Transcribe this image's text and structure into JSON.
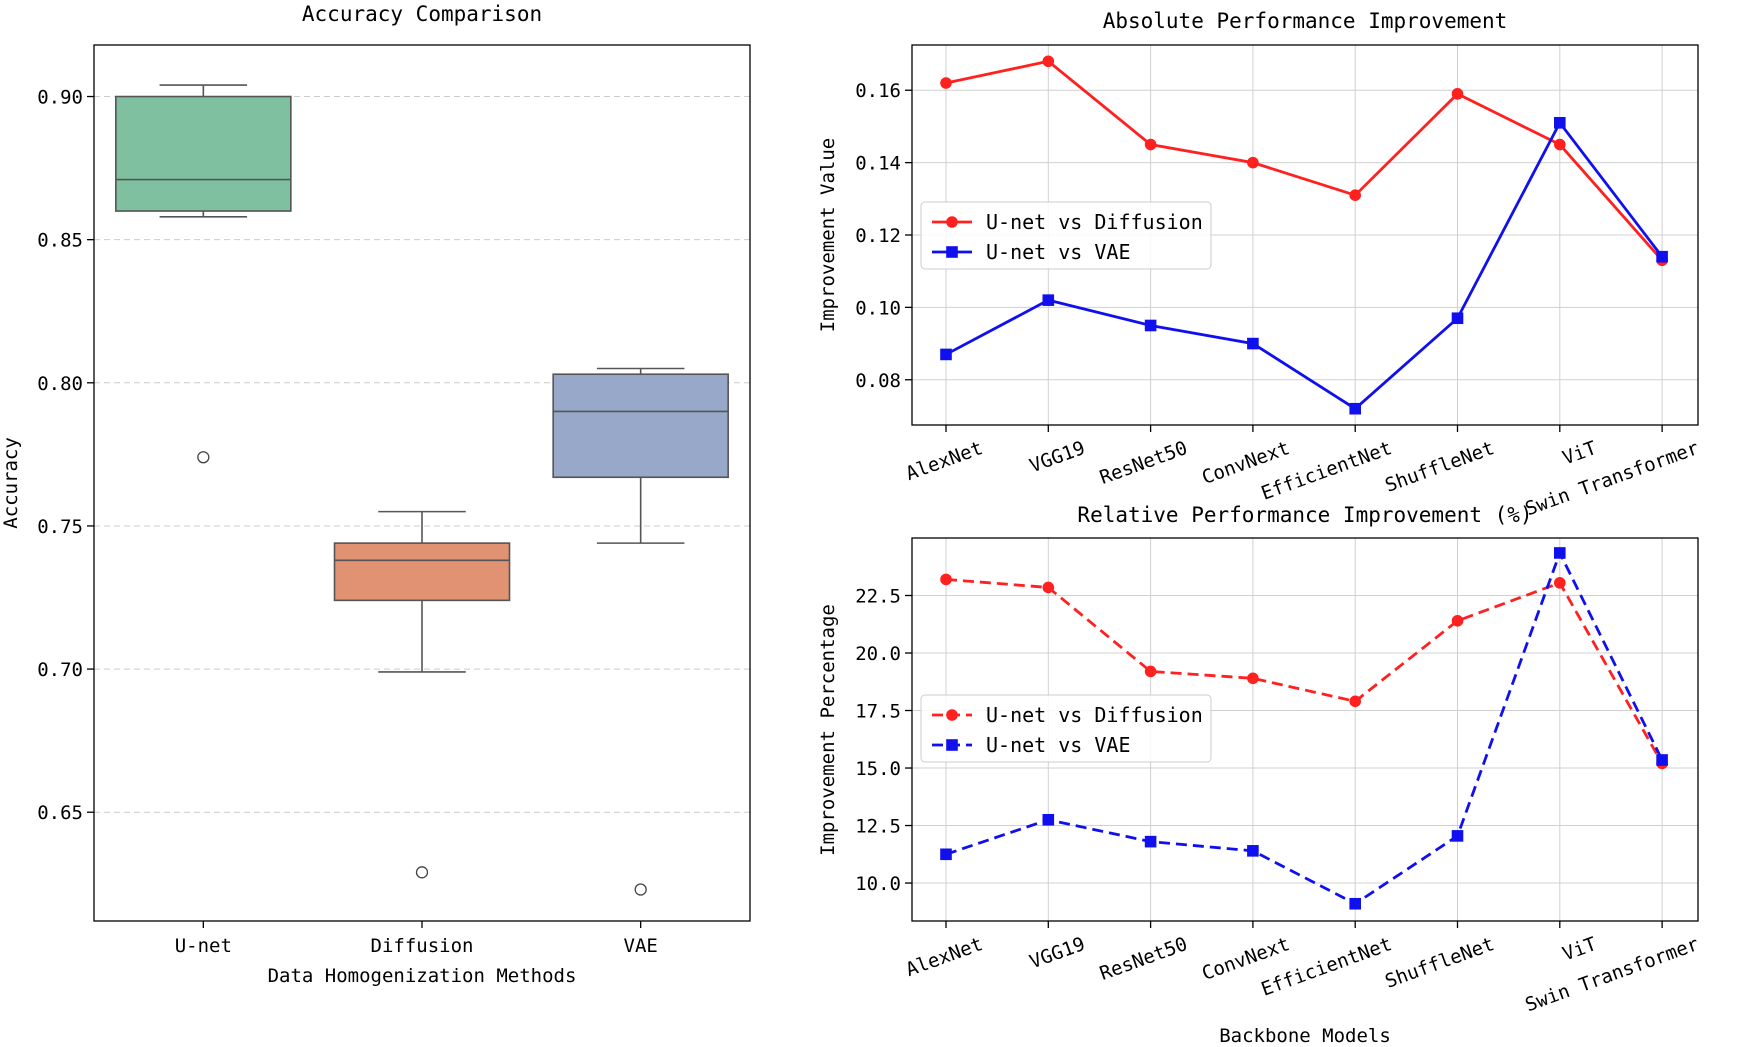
{
  "chart_data": [
    {
      "type": "box",
      "title": "Accuracy Comparison",
      "xlabel": "Data Homogenization Methods",
      "ylabel": "Accuracy",
      "ylim": [
        0.612,
        0.918
      ],
      "yticks": [
        "0.65",
        "0.70",
        "0.75",
        "0.80",
        "0.85",
        "0.90"
      ],
      "grid": "horizontal dashed",
      "boxes": [
        {
          "name": "U-net",
          "color": "#7fc0a0",
          "whisker_low": 0.858,
          "q1": 0.86,
          "median": 0.871,
          "q3": 0.9,
          "whisker_high": 0.904,
          "outliers": [
            0.774
          ]
        },
        {
          "name": "Diffusion",
          "color": "#e09273",
          "whisker_low": 0.699,
          "q1": 0.724,
          "median": 0.738,
          "q3": 0.744,
          "whisker_high": 0.755,
          "outliers": [
            0.629
          ]
        },
        {
          "name": "VAE",
          "color": "#97a8c8",
          "whisker_low": 0.744,
          "q1": 0.767,
          "median": 0.79,
          "q3": 0.803,
          "whisker_high": 0.805,
          "outliers": [
            0.623
          ]
        }
      ]
    },
    {
      "type": "line",
      "title": "Absolute Performance Improvement",
      "xlabel": "",
      "ylabel": "Improvement Value",
      "ylim": [
        0.0675,
        0.1725
      ],
      "yticks": [
        "0.08",
        "0.10",
        "0.12",
        "0.14",
        "0.16"
      ],
      "categories": [
        "AlexNet",
        "VGG19",
        "ResNet50",
        "ConvNext",
        "EfficientNet",
        "ShuffleNet",
        "ViT",
        "Swin Transformer"
      ],
      "legend": "center-left",
      "series": [
        {
          "name": "U-net vs Diffusion",
          "color": "#ff2020",
          "style": "solid",
          "marker": "circle",
          "values": [
            0.162,
            0.168,
            0.145,
            0.14,
            0.131,
            0.159,
            0.145,
            0.113
          ]
        },
        {
          "name": "U-net vs VAE",
          "color": "#1010ee",
          "style": "solid",
          "marker": "square",
          "values": [
            0.087,
            0.102,
            0.095,
            0.09,
            0.072,
            0.097,
            0.151,
            0.114
          ]
        }
      ]
    },
    {
      "type": "line",
      "title": "Relative Performance Improvement (%)",
      "xlabel": "Backbone Models",
      "ylabel": "Improvement Percentage",
      "ylim": [
        8.35,
        25.0
      ],
      "yticks": [
        "10.0",
        "12.5",
        "15.0",
        "17.5",
        "20.0",
        "22.5"
      ],
      "categories": [
        "AlexNet",
        "VGG19",
        "ResNet50",
        "ConvNext",
        "EfficientNet",
        "ShuffleNet",
        "ViT",
        "Swin Transformer"
      ],
      "legend": "center-left",
      "series": [
        {
          "name": "U-net vs Diffusion",
          "color": "#ff2020",
          "style": "dashed",
          "marker": "circle",
          "values": [
            23.2,
            22.85,
            19.2,
            18.9,
            17.9,
            21.4,
            23.05,
            15.2
          ]
        },
        {
          "name": "U-net vs VAE",
          "color": "#1010ee",
          "style": "dashed",
          "marker": "square",
          "values": [
            11.25,
            12.75,
            11.8,
            11.4,
            9.1,
            12.05,
            24.35,
            15.35
          ]
        }
      ]
    }
  ]
}
